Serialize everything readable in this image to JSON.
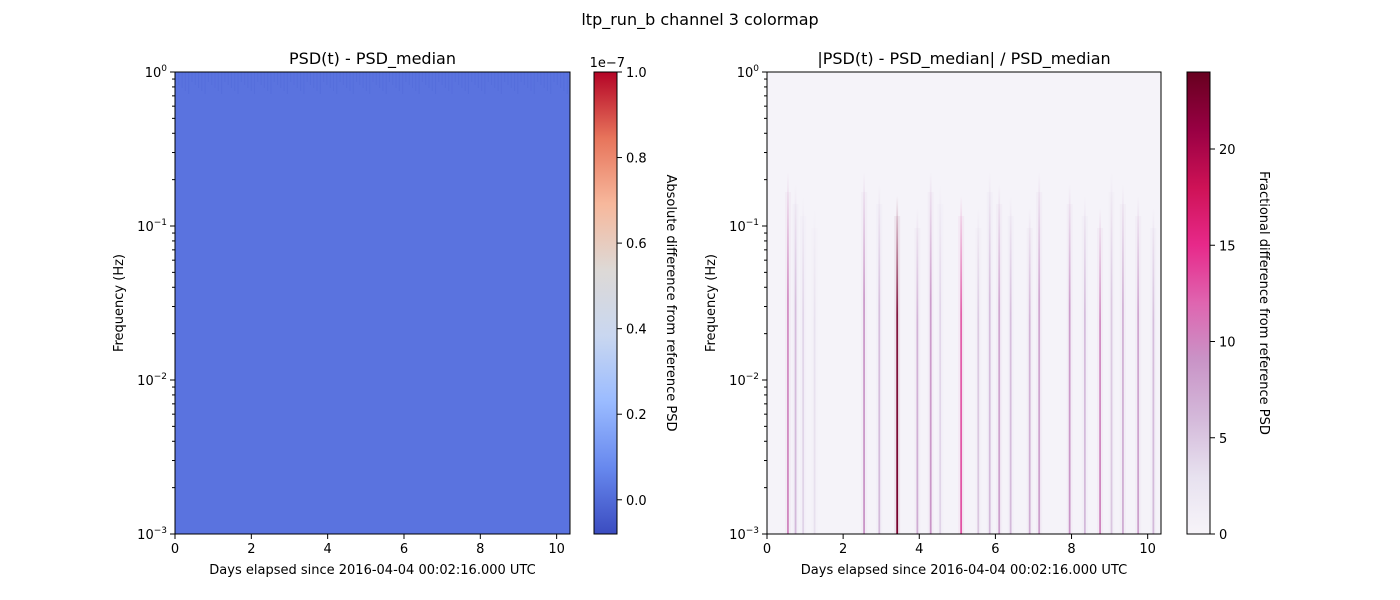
{
  "figure": {
    "title": "ltp_run_b channel 3 colormap"
  },
  "chart_data": [
    {
      "type": "heatmap",
      "title": "PSD(t) - PSD_median",
      "xlabel": "Days elapsed since 2016-04-04 00:02:16.000 UTC",
      "ylabel": "Frequency (Hz)",
      "xlim": [
        0,
        10.35
      ],
      "ylim": [
        0.001,
        1
      ],
      "yscale": "log",
      "x_ticks": [
        0,
        2,
        4,
        6,
        8,
        10
      ],
      "y_ticks": [
        {
          "value": 1,
          "label_base": "10",
          "label_exp": "0"
        },
        {
          "value": 0.1,
          "label_base": "10",
          "label_exp": "−1"
        },
        {
          "value": 0.01,
          "label_base": "10",
          "label_exp": "−2"
        },
        {
          "value": 0.001,
          "label_base": "10",
          "label_exp": "−3"
        }
      ],
      "cell_value": 0.0,
      "colormap": "coolwarm",
      "fill_color": "#5a73df",
      "colorbar": {
        "label": "Absolute difference from reference PSD",
        "offset_label": "1e−7",
        "vmin": -0.08,
        "vmax": 1.0,
        "ticks": [
          0.0,
          0.2,
          0.4,
          0.6,
          0.8,
          1.0
        ],
        "tick_labels": [
          "0.0",
          "0.2",
          "0.4",
          "0.6",
          "0.8",
          "1.0"
        ],
        "stops": [
          "#3b4cc0",
          "#6788ee",
          "#9abbff",
          "#c9d7f0",
          "#ddd9d6",
          "#f7b89c",
          "#e7745b",
          "#b40426"
        ]
      }
    },
    {
      "type": "heatmap",
      "title": "|PSD(t) - PSD_median| / PSD_median",
      "xlabel": "Days elapsed since 2016-04-04 00:02:16.000 UTC",
      "ylabel": "Frequency (Hz)",
      "xlim": [
        0,
        10.35
      ],
      "ylim": [
        0.001,
        1
      ],
      "yscale": "log",
      "x_ticks": [
        0,
        2,
        4,
        6,
        8,
        10
      ],
      "y_ticks": [
        {
          "value": 1,
          "label_base": "10",
          "label_exp": "0"
        },
        {
          "value": 0.1,
          "label_base": "10",
          "label_exp": "−1"
        },
        {
          "value": 0.01,
          "label_base": "10",
          "label_exp": "−2"
        },
        {
          "value": 0.001,
          "label_base": "10",
          "label_exp": "−3"
        }
      ],
      "colormap": "PuRd",
      "background_color": "#f5f3f9",
      "spikes": [
        {
          "day": 0.55,
          "value": 10
        },
        {
          "day": 0.75,
          "value": 6
        },
        {
          "day": 0.95,
          "value": 4
        },
        {
          "day": 1.25,
          "value": 3
        },
        {
          "day": 2.55,
          "value": 9
        },
        {
          "day": 2.95,
          "value": 6
        },
        {
          "day": 3.42,
          "value": 23
        },
        {
          "day": 3.95,
          "value": 7
        },
        {
          "day": 4.3,
          "value": 9
        },
        {
          "day": 4.55,
          "value": 4
        },
        {
          "day": 5.1,
          "value": 13
        },
        {
          "day": 5.55,
          "value": 5
        },
        {
          "day": 5.85,
          "value": 6
        },
        {
          "day": 6.1,
          "value": 8
        },
        {
          "day": 6.4,
          "value": 6
        },
        {
          "day": 6.9,
          "value": 7
        },
        {
          "day": 7.15,
          "value": 8
        },
        {
          "day": 7.95,
          "value": 9
        },
        {
          "day": 8.35,
          "value": 6
        },
        {
          "day": 8.75,
          "value": 10
        },
        {
          "day": 9.05,
          "value": 5
        },
        {
          "day": 9.35,
          "value": 7
        },
        {
          "day": 9.75,
          "value": 8
        },
        {
          "day": 10.15,
          "value": 6
        }
      ],
      "colorbar": {
        "label": "Fractional difference from reference PSD",
        "vmin": 0,
        "vmax": 24,
        "ticks": [
          0,
          5,
          10,
          15,
          20
        ],
        "tick_labels": [
          "0",
          "5",
          "10",
          "15",
          "20"
        ],
        "stops": [
          "#f7f4f9",
          "#e7e1ef",
          "#d4b9da",
          "#c994c7",
          "#df65b0",
          "#e7298a",
          "#ce1256",
          "#980043",
          "#67001f"
        ]
      }
    }
  ]
}
